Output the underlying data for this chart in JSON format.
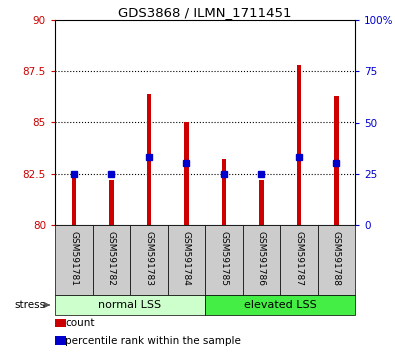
{
  "title": "GDS3868 / ILMN_1711451",
  "samples": [
    "GSM591781",
    "GSM591782",
    "GSM591783",
    "GSM591784",
    "GSM591785",
    "GSM591786",
    "GSM591787",
    "GSM591788"
  ],
  "count_values": [
    82.5,
    82.2,
    86.4,
    85.0,
    83.2,
    82.2,
    87.8,
    86.3
  ],
  "percentile_values": [
    25,
    25,
    33,
    30,
    25,
    25,
    33,
    30
  ],
  "groups": [
    {
      "label": "normal LSS",
      "start": 0,
      "end": 4,
      "color": "#ccffcc"
    },
    {
      "label": "elevated LSS",
      "start": 4,
      "end": 8,
      "color": "#44ee44"
    }
  ],
  "ylim": [
    80,
    90
  ],
  "yticks": [
    80,
    82.5,
    85,
    87.5,
    90
  ],
  "ytick_labels": [
    "80",
    "82.5",
    "85",
    "87.5",
    "90"
  ],
  "right_yticks": [
    0,
    25,
    50,
    75,
    100
  ],
  "right_ytick_labels": [
    "0",
    "25",
    "50",
    "75",
    "100%"
  ],
  "bar_color": "#cc0000",
  "percentile_color": "#0000cc",
  "bar_width": 0.12,
  "bar_bottom": 80,
  "grid_dotted_ticks": [
    82.5,
    85,
    87.5
  ],
  "bg_color": "#ffffff",
  "tick_label_color_left": "#cc0000",
  "tick_label_color_right": "#0000cc",
  "tick_area_bg": "#cccccc",
  "stress_label": "stress"
}
